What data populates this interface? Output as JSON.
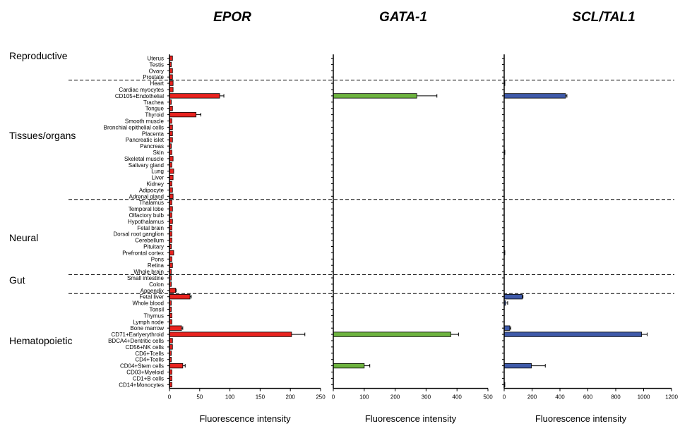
{
  "chart_data": {
    "type": "bar",
    "orientation": "horizontal",
    "xlabel": "Fluorescence intensity",
    "categories": [
      "Uterus",
      "Testis",
      "Ovary",
      "Prostate",
      "Heart",
      "Cardiac myocytes",
      "CD105+Endothelial",
      "Trachea",
      "Tongue",
      "Thyroid",
      "Smooth muscle",
      "Bronchial epithelial cells",
      "Placenta",
      "Pancreatic islet",
      "Pancreas",
      "Skin",
      "Skeletal muscle",
      "Salivary gland",
      "Lung",
      "Liver",
      "Kidney",
      "Adipocyte",
      "Adrenal gland",
      "Thalamus",
      "Temporal lobe",
      "Olfactory bulb",
      "Hypothalamus",
      "Fetal brain",
      "Dorsal root ganglion",
      "Cerebellum",
      "Pituitary",
      "Prefrontal cortex",
      "Pons",
      "Retina",
      "Whole brain",
      "Small intestine",
      "Colon",
      "Appendix",
      "Fetal liver",
      "Whole blood",
      "Tonsil",
      "Thymus",
      "Lymph node",
      "Bone marrow",
      "CD71+Earlyerythroid",
      "BDCA4+Dentritic cells",
      "CD56+NK cells",
      "CD6+Tcells",
      "CD4+Tcells",
      "CD04+Stem cells",
      "CD03+Myeloid",
      "CD1+B cells",
      "CD14+Monocytes"
    ],
    "groups": [
      {
        "label": "Reproductive",
        "start": 0,
        "end": 3
      },
      {
        "label": "Tissues/organs",
        "start": 4,
        "end": 22
      },
      {
        "label": "Neural",
        "start": 23,
        "end": 34
      },
      {
        "label": "Gut",
        "start": 35,
        "end": 37
      },
      {
        "label": "Hematopoietic",
        "start": 38,
        "end": 52
      }
    ],
    "panels": [
      {
        "title": "EPOR",
        "color": "#e8231f",
        "xlim": [
          0,
          250
        ],
        "xticks": [
          0,
          50,
          100,
          150,
          200,
          250
        ],
        "values": [
          5,
          3,
          5,
          5,
          6,
          6,
          83,
          3,
          5,
          44,
          4,
          5,
          5,
          5,
          3,
          4,
          6,
          4,
          7,
          6,
          4,
          5,
          6,
          4,
          5,
          4,
          5,
          4,
          4,
          4,
          3,
          7,
          4,
          5,
          3,
          3,
          3,
          10,
          34,
          3,
          3,
          4,
          4,
          20,
          202,
          5,
          5,
          3,
          3,
          22,
          4,
          4,
          4
        ],
        "errors": [
          0,
          0,
          0,
          0,
          0,
          0,
          7,
          0,
          0,
          8,
          0,
          0,
          0,
          0,
          0,
          0,
          0,
          0,
          0,
          0,
          0,
          0,
          0,
          0,
          0,
          0,
          0,
          0,
          0,
          0,
          0,
          0,
          0,
          0,
          0,
          0,
          0,
          1,
          2,
          0,
          0,
          0,
          0,
          2,
          22,
          0,
          0,
          0,
          0,
          4,
          0,
          0,
          0
        ]
      },
      {
        "title": "GATA-1",
        "color": "#6db33f",
        "xlim": [
          0,
          500
        ],
        "xticks": [
          0,
          100,
          200,
          300,
          400,
          500
        ],
        "values": [
          0,
          0,
          0,
          0,
          0,
          0,
          270,
          0,
          0,
          0,
          0,
          0,
          0,
          0,
          0,
          0,
          0,
          0,
          0,
          0,
          0,
          0,
          0,
          0,
          0,
          0,
          0,
          0,
          0,
          0,
          0,
          0,
          0,
          0,
          0,
          0,
          0,
          0,
          0,
          0,
          0,
          0,
          0,
          0,
          380,
          0,
          0,
          0,
          0,
          100,
          0,
          0,
          0
        ],
        "errors": [
          0,
          0,
          0,
          0,
          0,
          0,
          65,
          0,
          0,
          0,
          0,
          0,
          0,
          0,
          0,
          0,
          0,
          0,
          0,
          0,
          0,
          0,
          0,
          0,
          0,
          0,
          0,
          0,
          0,
          0,
          0,
          0,
          0,
          0,
          0,
          0,
          0,
          0,
          0,
          0,
          0,
          0,
          0,
          0,
          25,
          0,
          0,
          0,
          0,
          18,
          0,
          0,
          0
        ]
      },
      {
        "title": "SCL/TAL1",
        "color": "#3f5aa9",
        "xlim": [
          0,
          1200
        ],
        "xticks": [
          0,
          200,
          400,
          600,
          800,
          1000,
          1200
        ],
        "values": [
          0,
          0,
          0,
          0,
          5,
          0,
          440,
          0,
          0,
          0,
          0,
          0,
          0,
          0,
          0,
          5,
          0,
          0,
          0,
          0,
          0,
          0,
          0,
          0,
          0,
          0,
          0,
          0,
          0,
          0,
          0,
          5,
          0,
          0,
          0,
          0,
          0,
          0,
          130,
          10,
          0,
          0,
          0,
          40,
          985,
          0,
          0,
          0,
          0,
          195,
          0,
          0,
          5
        ],
        "errors": [
          0,
          0,
          0,
          0,
          0,
          0,
          10,
          0,
          0,
          0,
          0,
          0,
          0,
          0,
          0,
          0,
          0,
          0,
          0,
          0,
          0,
          0,
          0,
          0,
          0,
          0,
          0,
          0,
          0,
          0,
          0,
          0,
          0,
          0,
          0,
          0,
          0,
          0,
          5,
          15,
          0,
          0,
          0,
          8,
          40,
          0,
          0,
          0,
          0,
          100,
          0,
          0,
          0
        ]
      }
    ]
  }
}
